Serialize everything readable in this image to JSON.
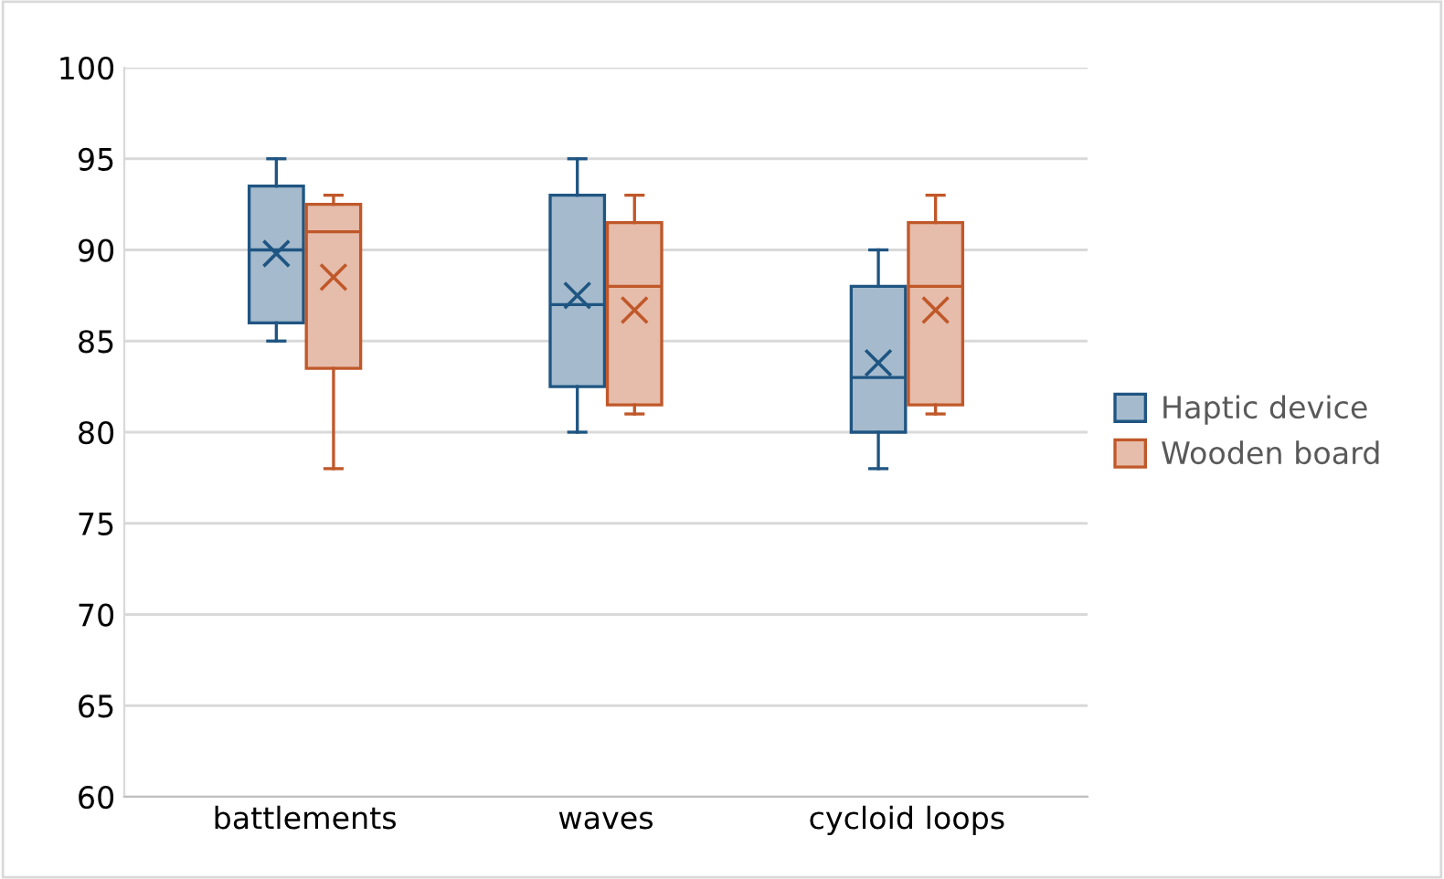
{
  "chart_data": {
    "type": "box",
    "categories": [
      "battlements",
      "waves",
      "cycloid loops"
    ],
    "series": [
      {
        "name": "Haptic device",
        "color": "#1f5582",
        "boxes": [
          {
            "low": 85,
            "q1": 86,
            "median": 90,
            "q3": 93.5,
            "high": 95,
            "mean": 89.8
          },
          {
            "low": 80,
            "q1": 82.5,
            "median": 87,
            "q3": 93,
            "high": 95,
            "mean": 87.5
          },
          {
            "low": 78,
            "q1": 80,
            "median": 83,
            "q3": 88,
            "high": 90,
            "mean": 83.8
          }
        ]
      },
      {
        "name": "Wooden board",
        "color": "#c0582a",
        "boxes": [
          {
            "low": 78,
            "q1": 83.5,
            "median": 91,
            "q3": 92.5,
            "high": 93,
            "mean": 88.5
          },
          {
            "low": 81,
            "q1": 81.5,
            "median": 88,
            "q3": 91.5,
            "high": 93,
            "mean": 86.7
          },
          {
            "low": 81,
            "q1": 81.5,
            "median": 88,
            "q3": 91.5,
            "high": 93,
            "mean": 86.7
          }
        ]
      }
    ],
    "ylim": [
      60,
      100
    ],
    "yticks": [
      60,
      65,
      70,
      75,
      80,
      85,
      90,
      95,
      100
    ],
    "grid": "y",
    "legend": "right",
    "marker": "cross"
  }
}
